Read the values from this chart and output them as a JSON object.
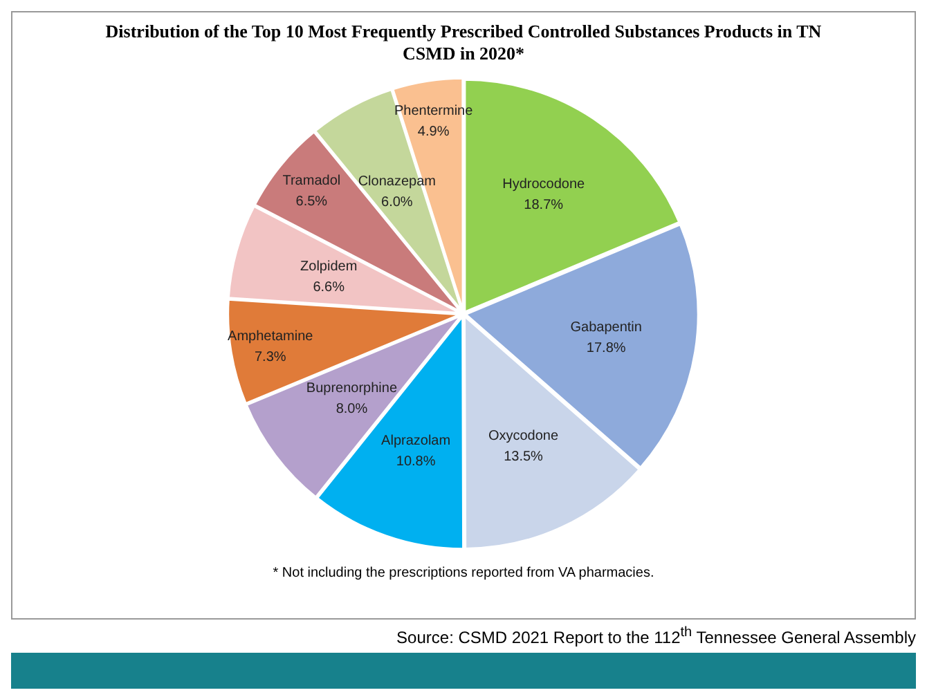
{
  "chart_data": {
    "type": "pie",
    "title": "Distribution of the Top 10 Most Frequently Prescribed Controlled Substances Products in TN CSMD in 2020*",
    "categories": [
      "Hydrocodone",
      "Gabapentin",
      "Oxycodone",
      "Alprazolam",
      "Buprenorphine",
      "Amphetamine",
      "Zolpidem",
      "Tramadol",
      "Clonazepam",
      "Phentermine"
    ],
    "values": [
      18.7,
      17.8,
      13.5,
      10.8,
      8.0,
      7.3,
      6.6,
      6.5,
      6.0,
      4.9
    ],
    "value_labels": [
      "18.7%",
      "17.8%",
      "13.5%",
      "10.8%",
      "8.0%",
      "7.3%",
      "6.6%",
      "6.5%",
      "6.0%",
      "4.9%"
    ],
    "colors": [
      "#92d050",
      "#8eaadb",
      "#c9d5ea",
      "#00b0f0",
      "#b4a0cc",
      "#e07b39",
      "#f2c4c4",
      "#c97b7b",
      "#c4d79b",
      "#fac090"
    ],
    "legend": false,
    "annotations": [
      "* Not including the prescriptions reported from VA pharmacies.",
      "Source: CSMD 2021 Report to the 112$^{th}$ Tennessee General Assembly"
    ]
  }
}
